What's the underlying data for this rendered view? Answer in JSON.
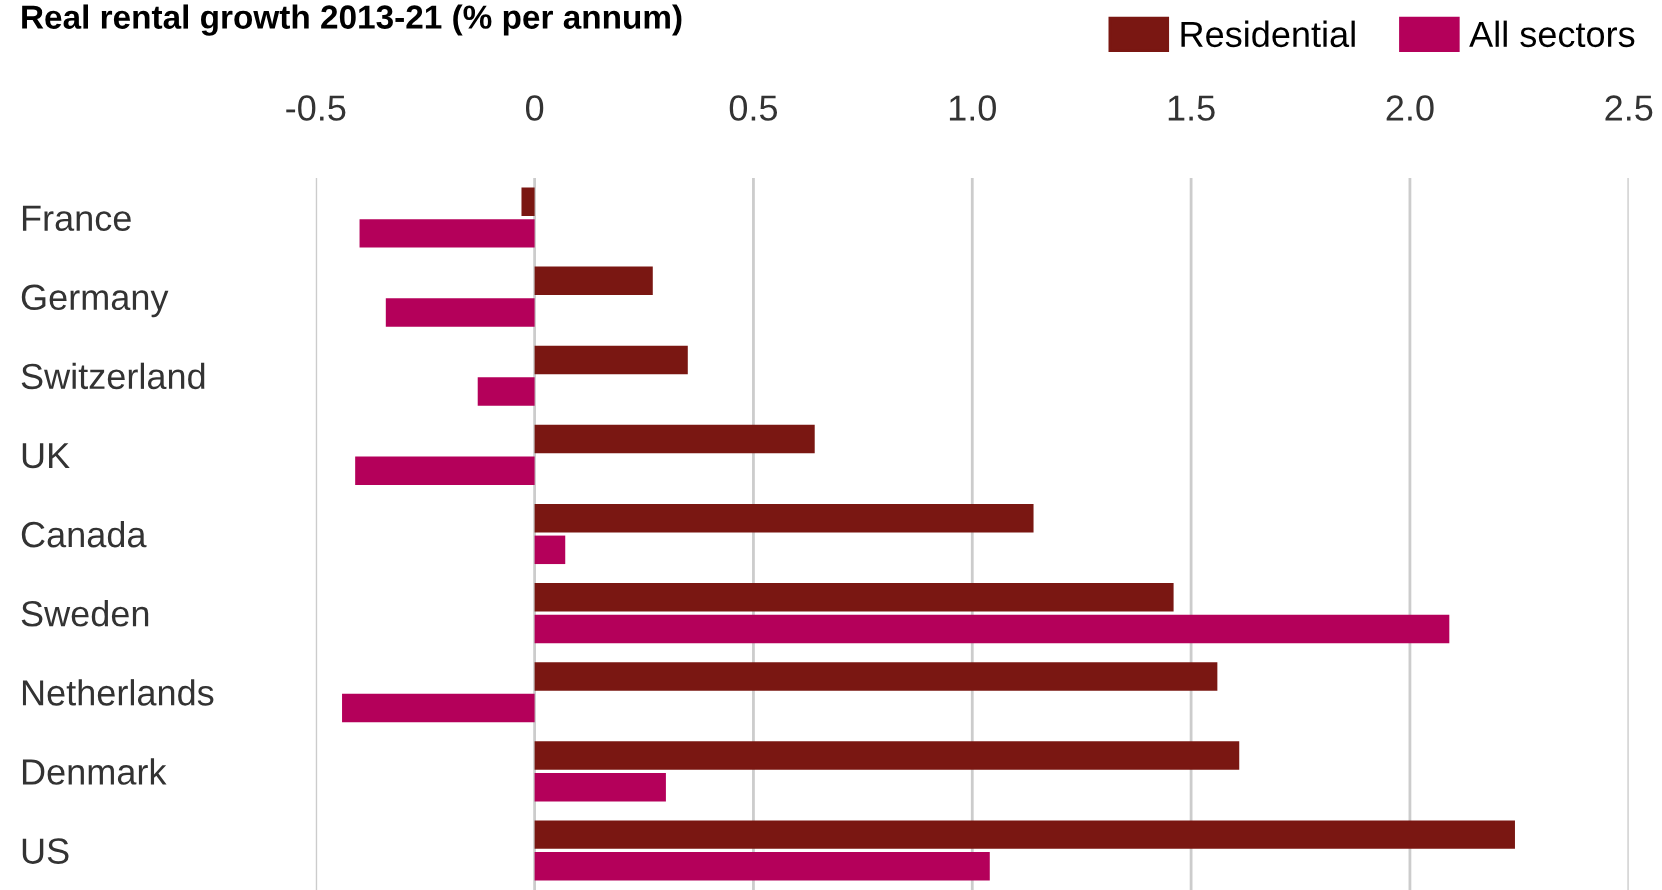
{
  "chart_data": {
    "type": "bar",
    "orientation": "horizontal",
    "title": "Real rental growth 2013-21 (% per annum)",
    "categories": [
      "France",
      "Germany",
      "Switzerland",
      "UK",
      "Canada",
      "Sweden",
      "Netherlands",
      "Denmark",
      "US"
    ],
    "series": [
      {
        "name": "Residential",
        "color": "#7a1712",
        "values": [
          -0.03,
          0.27,
          0.35,
          0.64,
          1.14,
          1.46,
          1.56,
          1.61,
          2.24
        ]
      },
      {
        "name": "All sectors",
        "color": "#b4005a",
        "values": [
          -0.4,
          -0.34,
          -0.13,
          -0.41,
          0.07,
          2.09,
          -0.44,
          0.3,
          1.04
        ]
      }
    ],
    "xlim": [
      -0.5,
      2.5
    ],
    "xticks": [
      -0.5,
      0,
      0.5,
      {
        "value": 1,
        "label": "1.0"
      },
      1.5,
      {
        "value": 2,
        "label": "2.0"
      },
      2.5
    ],
    "grid": "x",
    "legend": "top right"
  }
}
